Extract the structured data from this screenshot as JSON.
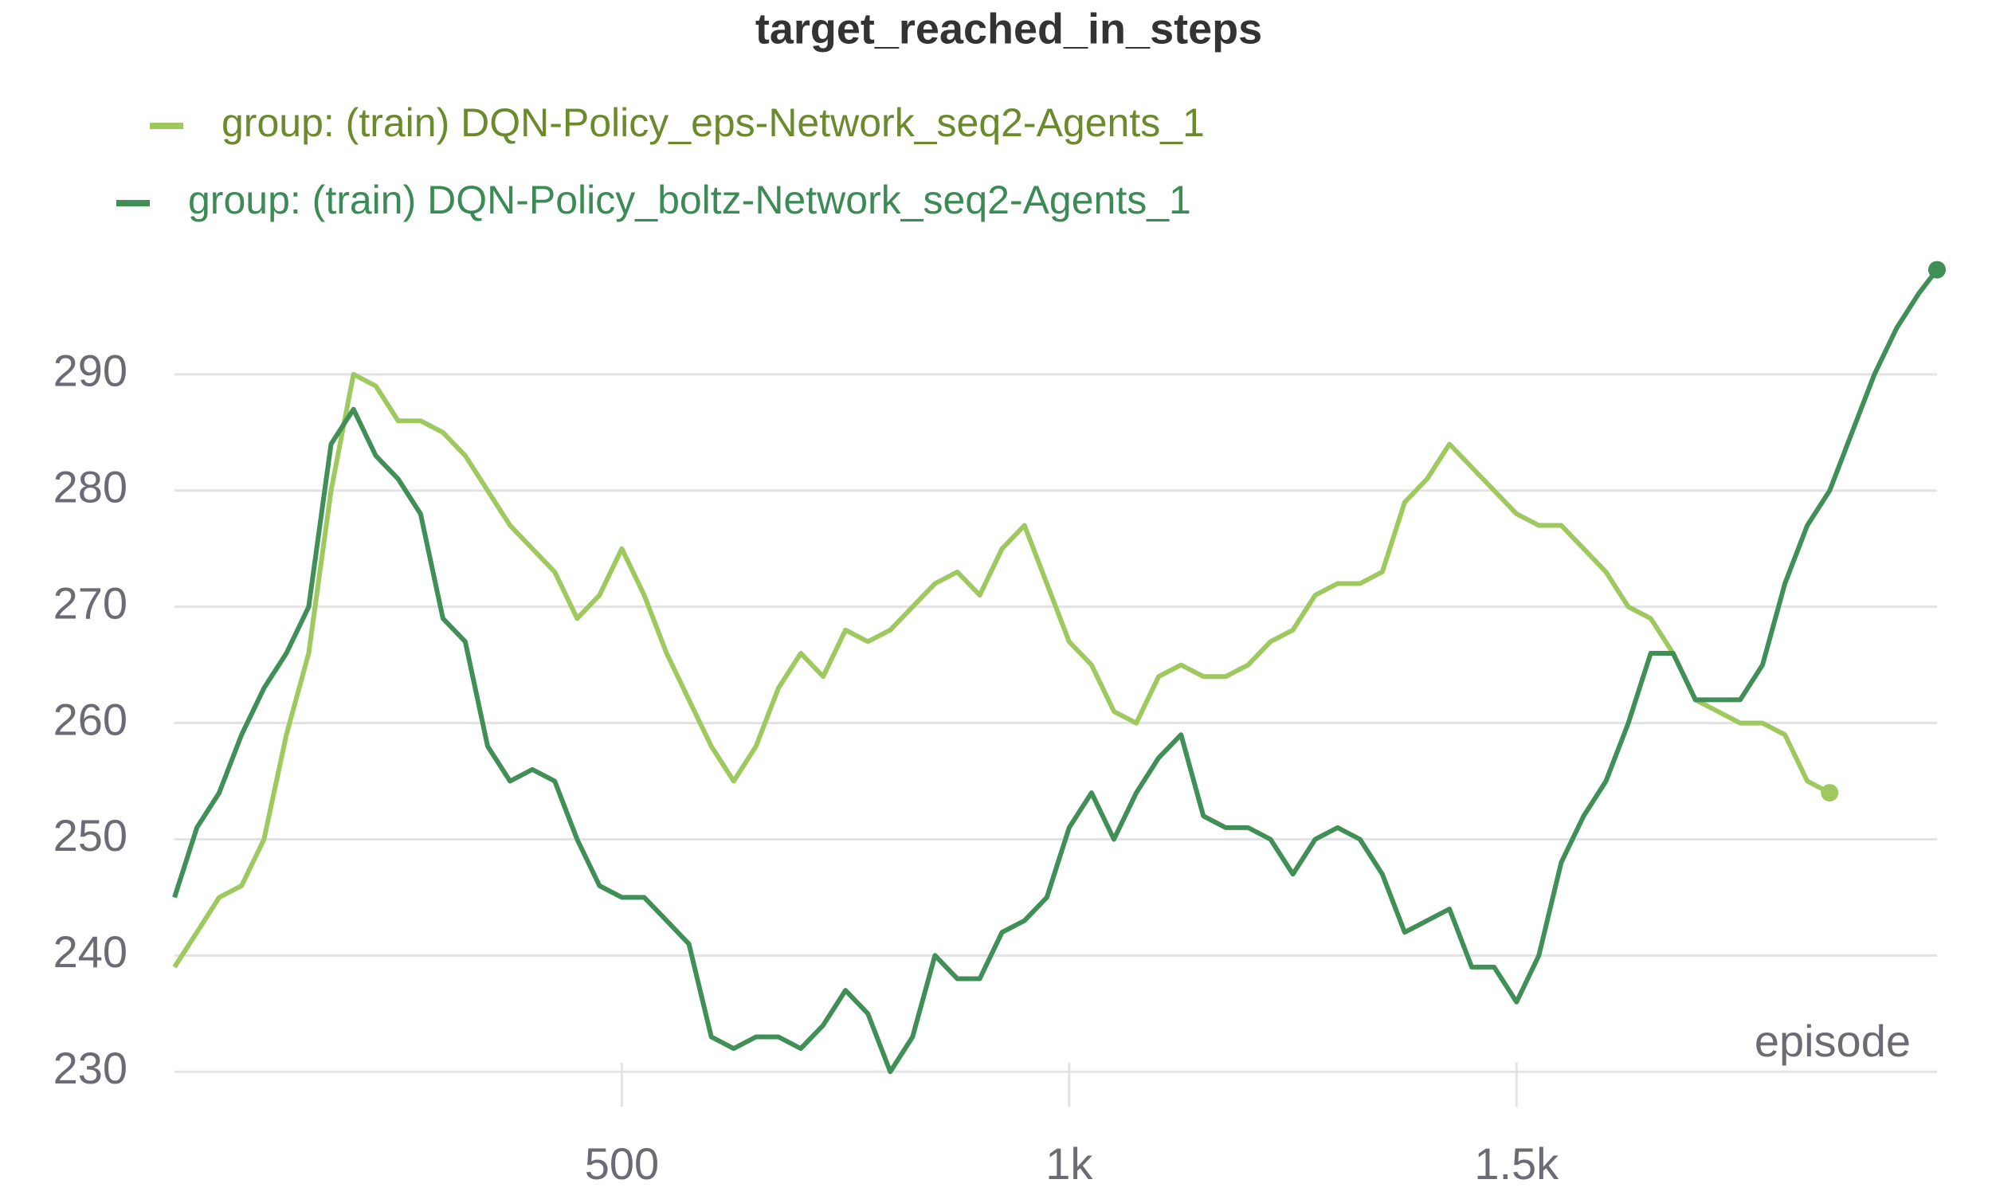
{
  "chart_data": {
    "type": "line",
    "title": "target_reached_in_steps",
    "xlabel": "episode",
    "x": [
      0,
      25,
      50,
      75,
      100,
      125,
      150,
      175,
      200,
      225,
      250,
      275,
      300,
      325,
      350,
      375,
      400,
      425,
      450,
      475,
      500,
      525,
      550,
      575,
      600,
      625,
      650,
      675,
      700,
      725,
      750,
      775,
      800,
      825,
      850,
      875,
      900,
      925,
      950,
      975,
      1000,
      1025,
      1050,
      1075,
      1100,
      1125,
      1150,
      1175,
      1200,
      1225,
      1250,
      1275,
      1300,
      1325,
      1350,
      1375,
      1400,
      1425,
      1450,
      1475,
      1500,
      1525,
      1550,
      1575,
      1600,
      1625,
      1650,
      1675,
      1700,
      1725,
      1750,
      1775,
      1800,
      1825,
      1850,
      1875,
      1900,
      1925,
      1950,
      1970
    ],
    "series": [
      {
        "name": "group: (train) DQN-Policy_eps-Network_seq2-Agents_1",
        "color": "#9dc95e",
        "values": [
          239,
          242,
          245,
          246,
          250,
          259,
          266,
          280,
          290,
          289,
          286,
          286,
          285,
          283,
          280,
          277,
          275,
          273,
          269,
          271,
          275,
          271,
          266,
          262,
          258,
          255,
          258,
          263,
          266,
          264,
          268,
          267,
          268,
          270,
          272,
          273,
          271,
          275,
          277,
          272,
          267,
          265,
          261,
          260,
          264,
          265,
          264,
          264,
          265,
          267,
          268,
          271,
          272,
          272,
          273,
          279,
          281,
          284,
          282,
          280,
          278,
          277,
          277,
          275,
          273,
          270,
          269,
          266,
          262,
          261,
          260,
          260,
          259,
          255,
          254,
          null,
          null,
          null,
          null,
          null
        ]
      },
      {
        "name": "group: (train) DQN-Policy_boltz-Network_seq2-Agents_1",
        "color": "#3f8f57",
        "values": [
          245,
          251,
          254,
          259,
          263,
          266,
          270,
          284,
          287,
          283,
          281,
          278,
          269,
          267,
          258,
          255,
          256,
          255,
          250,
          246,
          245,
          245,
          243,
          241,
          233,
          232,
          233,
          233,
          232,
          234,
          237,
          235,
          230,
          233,
          240,
          238,
          238,
          242,
          243,
          245,
          251,
          254,
          250,
          254,
          257,
          259,
          252,
          251,
          251,
          250,
          247,
          250,
          251,
          250,
          247,
          242,
          243,
          244,
          239,
          239,
          236,
          240,
          248,
          252,
          255,
          260,
          266,
          266,
          262,
          262,
          262,
          265,
          272,
          277,
          280,
          285,
          290,
          294,
          297,
          299
        ]
      }
    ],
    "xlim": [
      0,
      1970
    ],
    "ylim": [
      227,
      300
    ],
    "xticks": [
      500,
      {
        "value": 1000,
        "label": "1k"
      },
      {
        "value": 1500,
        "label": "1.5k"
      }
    ],
    "yticks": [
      230,
      240,
      250,
      260,
      270,
      280,
      290
    ],
    "grid": true
  }
}
